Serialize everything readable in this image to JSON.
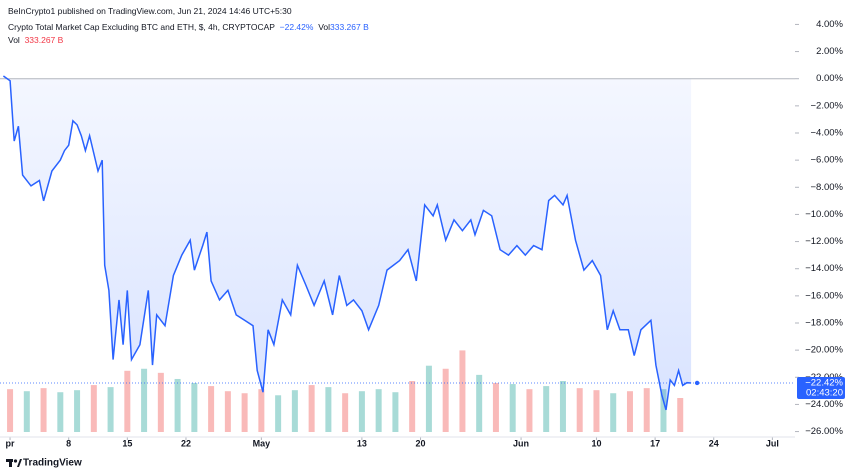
{
  "chart_data": {
    "type": "line",
    "published": "BeInCrypto1 published on TradingView.com, Jun 21, 2024 14:46 UTC+5:30",
    "title": "Crypto Total Market Cap Excluding BTC and ETH, $, 4h, CRYPTOCAP",
    "change": "−22.42%",
    "vol_label": "Vol",
    "vol_value": "333.267 B",
    "vol_label2": "Vol",
    "vol_value2": "333.267 B",
    "brand": "TradingView",
    "color": "#2962ff",
    "x": [
      -0.8,
      0,
      0.5,
      1,
      1.5,
      2.5,
      3.5,
      4,
      5,
      6,
      6.5,
      7,
      7.5,
      8,
      8.5,
      9,
      9.5,
      10.5,
      11,
      11.3,
      11.8,
      12.3,
      13,
      13.5,
      14,
      14.5,
      15.5,
      16.5,
      17,
      17.5,
      18.5,
      19.5,
      20.5,
      21.5,
      22,
      23,
      23.5,
      24,
      25,
      26,
      27,
      28,
      29,
      29.5,
      30.2,
      30.8,
      31.5,
      32.5,
      33.5,
      34.3,
      35.3,
      36.3,
      37.5,
      38.5,
      39.3,
      40.2,
      41,
      42,
      42.8,
      44,
      45,
      46.5,
      47.5,
      48.5,
      49.5,
      50.5,
      51,
      52,
      53,
      54,
      55,
      55.5,
      56.5,
      57.5,
      58.5,
      59.5,
      60.5,
      61.5,
      62.5,
      63.5,
      64.3,
      65,
      66,
      66.5,
      67.5,
      68.5,
      69.5,
      70.5,
      71.3,
      72,
      72.8,
      73.8,
      74.5,
      75.3,
      76.5,
      77.1,
      77.8,
      78.3,
      78.8,
      79.3,
      79.8,
      80.3,
      80.8,
      81.3
    ],
    "values": [
      0.2,
      -0.15,
      -4.6,
      -3.5,
      -7.1,
      -7.9,
      -7.5,
      -9.0,
      -6.8,
      -6.0,
      -5.3,
      -4.9,
      -3.1,
      -3.4,
      -4.2,
      -5.3,
      -4.2,
      -6.8,
      -6.0,
      -13.75,
      -15.6,
      -20.7,
      -16.3,
      -19.6,
      -15.6,
      -20.7,
      -19.6,
      -15.6,
      -21.1,
      -17.4,
      -18.2,
      -14.5,
      -13.0,
      -11.9,
      -14.1,
      -12.3,
      -11.3,
      -14.9,
      -16.3,
      -15.6,
      -17.4,
      -17.8,
      -18.2,
      -21.5,
      -23.1,
      -18.5,
      -19.6,
      -16.3,
      -17.4,
      -13.75,
      -15.2,
      -16.7,
      -14.9,
      -17.4,
      -14.5,
      -16.7,
      -16.3,
      -17.1,
      -18.5,
      -16.7,
      -14.1,
      -13.4,
      -12.6,
      -14.9,
      -9.3,
      -10.1,
      -9.3,
      -11.9,
      -10.4,
      -11.2,
      -10.4,
      -11.5,
      -9.7,
      -10.1,
      -12.6,
      -13.0,
      -12.3,
      -13.0,
      -12.3,
      -12.6,
      -8.97,
      -8.6,
      -9.3,
      -8.6,
      -11.9,
      -14.1,
      -13.4,
      -14.5,
      -18.5,
      -17.1,
      -18.5,
      -18.5,
      -20.4,
      -18.5,
      -17.8,
      -21.1,
      -23.3,
      -24.4,
      -22.2,
      -22.6,
      -21.5,
      -22.6,
      -22.4,
      -22.42
    ],
    "last_value_label": "−22.42%",
    "countdown": "02:43:20",
    "baseline": 0,
    "xlim": [
      -1.2,
      93.7
    ],
    "xticks": [
      {
        "value": 0,
        "label": "pr"
      },
      {
        "value": 7,
        "label": "8"
      },
      {
        "value": 14,
        "label": "15"
      },
      {
        "value": 21,
        "label": "22"
      },
      {
        "value": 30,
        "label": "May"
      },
      {
        "value": 42,
        "label": "13"
      },
      {
        "value": 49,
        "label": "20"
      },
      {
        "value": 61,
        "label": "Jun"
      },
      {
        "value": 70,
        "label": "10"
      },
      {
        "value": 77,
        "label": "17"
      },
      {
        "value": 84,
        "label": "24"
      },
      {
        "value": 91,
        "label": "Jul"
      }
    ],
    "ylim": [
      -26.4,
      5.8
    ],
    "yticks": [
      {
        "value": 4,
        "label": "4.00%"
      },
      {
        "value": 2,
        "label": "2.00%"
      },
      {
        "value": 0,
        "label": "0.00%"
      },
      {
        "value": -2,
        "label": "−2.00%"
      },
      {
        "value": -4,
        "label": "−4.00%"
      },
      {
        "value": -6,
        "label": "−6.00%"
      },
      {
        "value": -8,
        "label": "−8.00%"
      },
      {
        "value": -10,
        "label": "−10.00%"
      },
      {
        "value": -12,
        "label": "−12.00%"
      },
      {
        "value": -14,
        "label": "−14.00%"
      },
      {
        "value": -16,
        "label": "−16.00%"
      },
      {
        "value": -18,
        "label": "−18.00%"
      },
      {
        "value": -20,
        "label": "−20.00%"
      },
      {
        "value": -22,
        "label": "−22.00%"
      },
      {
        "value": -24,
        "label": "−24.00%"
      },
      {
        "value": -26,
        "label": "−26.00%"
      }
    ],
    "volume": {
      "vlim": [
        0,
        1000
      ],
      "x": [
        0,
        2,
        4,
        6,
        8,
        10,
        12,
        14,
        16,
        18,
        20,
        22,
        24,
        26,
        28,
        30,
        32,
        34,
        36,
        38,
        40,
        42,
        44,
        46,
        48,
        50,
        52,
        54,
        56,
        58,
        60,
        62,
        64,
        66,
        68,
        70,
        72,
        74,
        76,
        78,
        80
      ],
      "values": [
        420,
        400,
        430,
        390,
        410,
        460,
        440,
        600,
        620,
        580,
        520,
        480,
        450,
        400,
        380,
        420,
        360,
        410,
        460,
        440,
        380,
        400,
        420,
        390,
        500,
        650,
        620,
        800,
        560,
        480,
        470,
        420,
        450,
        500,
        430,
        410,
        380,
        400,
        430,
        420,
        333.267
      ],
      "colors": [
        "#ef535066",
        "#26a69a66",
        "#ef535066",
        "#26a69a66",
        "#26a69a66",
        "#ef535066",
        "#26a69a66",
        "#ef535066",
        "#26a69a66",
        "#ef535066",
        "#26a69a66",
        "#26a69a66",
        "#ef535066",
        "#ef535066",
        "#ef535066",
        "#ef535066",
        "#26a69a66",
        "#26a69a66",
        "#ef535066",
        "#26a69a66",
        "#ef535066",
        "#26a69a66",
        "#26a69a66",
        "#26a69a66",
        "#ef535066",
        "#26a69a66",
        "#ef535066",
        "#ef535066",
        "#26a69a66",
        "#ef535066",
        "#26a69a66",
        "#ef535066",
        "#26a69a66",
        "#26a69a66",
        "#ef535066",
        "#ef535066",
        "#26a69a66",
        "#ef535066",
        "#ef535066",
        "#26a69a66",
        "#ef535066"
      ]
    }
  }
}
